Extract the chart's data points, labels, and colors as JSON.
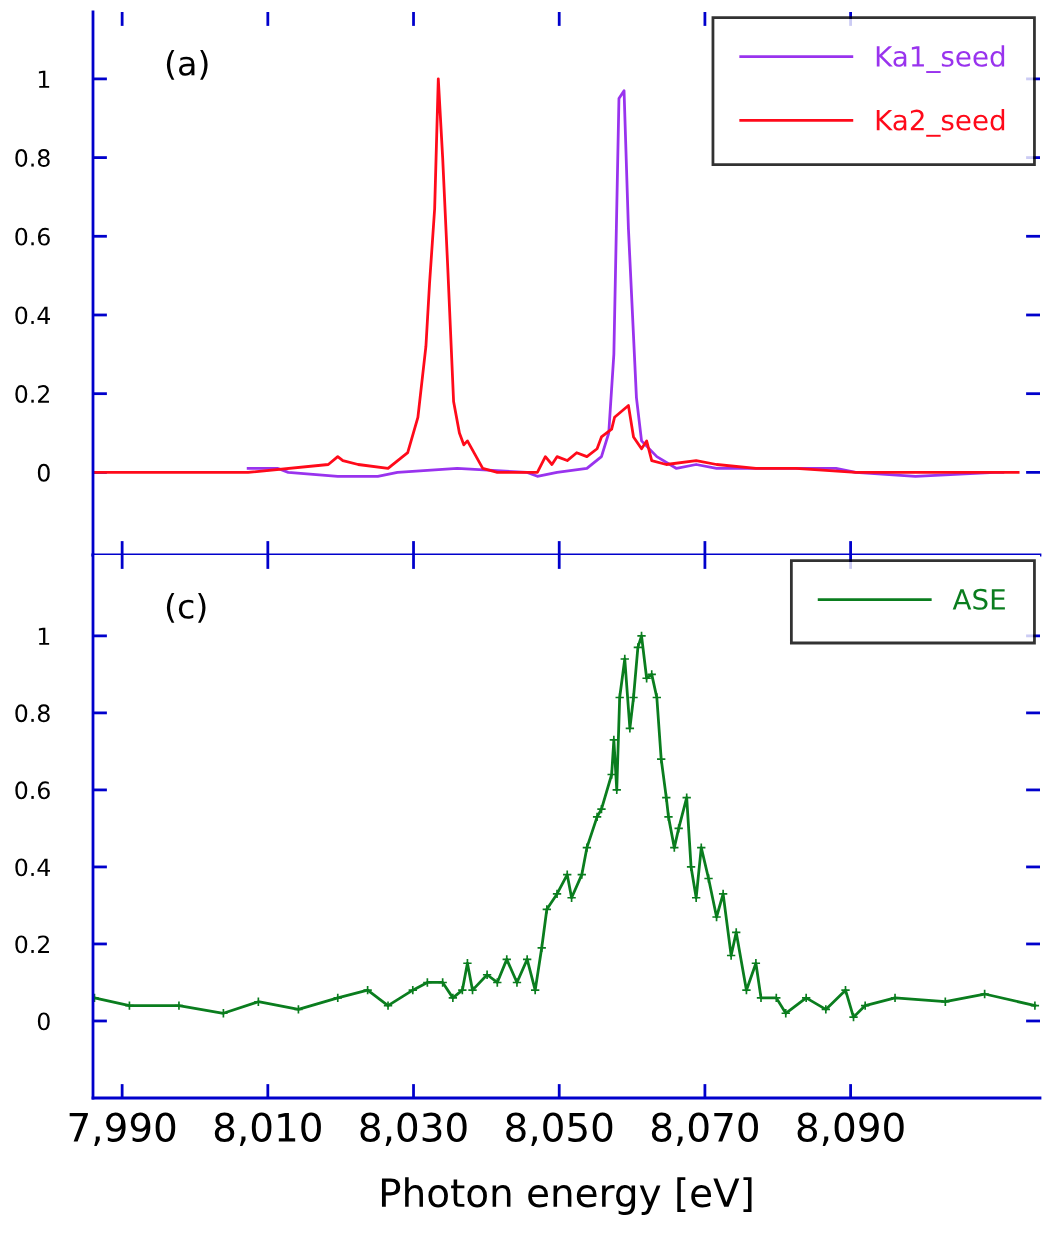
{
  "chart_data": [
    {
      "type": "line",
      "annotations": [
        "(a)"
      ],
      "xlim": [
        7986,
        8116
      ],
      "ylim": [
        -0.21,
        1.17
      ],
      "yticks": [
        0,
        0.2,
        0.4,
        0.6,
        0.8,
        1
      ],
      "xticks": [
        7990,
        8010,
        8030,
        8050,
        8070,
        8090
      ],
      "tick_labels": "y",
      "grid": false,
      "legend": "top right",
      "line_style": "solid",
      "marker": "none",
      "series": [
        {
          "name": "Ka1_seed",
          "color": "#9933ee",
          "x": [
            8007.3,
            8011.4,
            8012.8,
            8019.6,
            8025.1,
            8027.8,
            8036.0,
            8045.6,
            8047.0,
            8049.7,
            8053.8,
            8055.8,
            8056.8,
            8057.5,
            8058.2,
            8058.9,
            8059.5,
            8060.6,
            8061.3,
            8063.4,
            8066.1,
            8068.8,
            8071.6,
            8077.0,
            8082.5,
            8088.0,
            8090.7,
            8098.9,
            8109.8,
            8110.9
          ],
          "values": [
            0.01,
            0.01,
            0.0,
            -0.01,
            -0.01,
            0.0,
            0.01,
            0.0,
            -0.01,
            0.0,
            0.01,
            0.04,
            0.1,
            0.3,
            0.95,
            0.97,
            0.62,
            0.19,
            0.08,
            0.04,
            0.01,
            0.02,
            0.01,
            0.01,
            0.01,
            0.01,
            0.0,
            -0.01,
            0.0,
            0.0
          ]
        },
        {
          "name": "Ka2_seed",
          "color": "#ff0a1a",
          "x": [
            7986.2,
            8007.3,
            8018.3,
            8019.6,
            8020.3,
            8022.4,
            8026.5,
            8029.2,
            8030.6,
            8031.7,
            8032.2,
            8032.9,
            8033.4,
            8034.0,
            8034.7,
            8035.5,
            8036.3,
            8036.9,
            8037.4,
            8039.5,
            8041.5,
            8047.0,
            8048.1,
            8049.0,
            8049.7,
            8051.1,
            8052.4,
            8053.8,
            8055.2,
            8055.8,
            8057.2,
            8057.6,
            8059.5,
            8060.2,
            8061.3,
            8062.0,
            8062.7,
            8064.7,
            8068.8,
            8071.6,
            8077.0,
            8082.5,
            8090.7,
            8113.0
          ],
          "values": [
            0.0,
            0.0,
            0.02,
            0.04,
            0.03,
            0.02,
            0.01,
            0.05,
            0.14,
            0.32,
            0.48,
            0.67,
            1.0,
            0.8,
            0.52,
            0.18,
            0.1,
            0.07,
            0.08,
            0.01,
            0.0,
            0.0,
            0.04,
            0.02,
            0.04,
            0.03,
            0.05,
            0.04,
            0.06,
            0.09,
            0.11,
            0.14,
            0.17,
            0.09,
            0.06,
            0.08,
            0.03,
            0.02,
            0.03,
            0.02,
            0.01,
            0.01,
            0.0,
            0.0
          ]
        }
      ]
    },
    {
      "type": "line",
      "annotations": [
        "(c)"
      ],
      "xlabel": "Photon energy [eV]",
      "xlim": [
        7986,
        8116
      ],
      "ylim": [
        -0.2,
        1.21
      ],
      "yticks": [
        0,
        0.2,
        0.4,
        0.6,
        0.8,
        1
      ],
      "xticks": [
        {
          "value": 7990,
          "label": "7,990"
        },
        {
          "value": 8010,
          "label": "8,010"
        },
        {
          "value": 8030,
          "label": "8,030"
        },
        {
          "value": 8050,
          "label": "8,050"
        },
        {
          "value": 8070,
          "label": "8,070"
        },
        {
          "value": 8090,
          "label": "8,090"
        }
      ],
      "grid": false,
      "legend": "top right",
      "line_style": "solid",
      "marker": "cross",
      "series": [
        {
          "name": "ASE",
          "color": "#0a7d1e",
          "x": [
            7986.2,
            7991.0,
            7997.8,
            8003.9,
            8008.7,
            8014.2,
            8019.6,
            8023.7,
            8026.5,
            8029.9,
            8031.9,
            8034.0,
            8035.4,
            8036.7,
            8037.4,
            8038.1,
            8040.1,
            8041.5,
            8042.8,
            8044.2,
            8045.6,
            8046.7,
            8047.6,
            8048.3,
            8049.7,
            8051.1,
            8051.7,
            8053.1,
            8053.8,
            8055.2,
            8055.8,
            8057.2,
            8057.5,
            8057.9,
            8058.3,
            8059.0,
            8059.7,
            8060.2,
            8060.8,
            8061.3,
            8062.0,
            8062.7,
            8063.4,
            8064.0,
            8064.7,
            8065.0,
            8065.8,
            8066.4,
            8067.5,
            8068.1,
            8068.8,
            8069.5,
            8070.5,
            8071.6,
            8072.5,
            8073.6,
            8074.3,
            8075.7,
            8077.0,
            8077.7,
            8079.8,
            8081.1,
            8083.9,
            8086.6,
            8089.3,
            8090.4,
            8092.0,
            8096.1,
            8103.0,
            8108.4,
            8115.3
          ],
          "values": [
            0.06,
            0.04,
            0.04,
            0.02,
            0.05,
            0.03,
            0.06,
            0.08,
            0.04,
            0.08,
            0.1,
            0.1,
            0.06,
            0.08,
            0.15,
            0.08,
            0.12,
            0.1,
            0.16,
            0.1,
            0.16,
            0.08,
            0.19,
            0.29,
            0.33,
            0.38,
            0.32,
            0.38,
            0.45,
            0.53,
            0.55,
            0.64,
            0.73,
            0.6,
            0.84,
            0.94,
            0.76,
            0.84,
            0.97,
            1.0,
            0.89,
            0.9,
            0.84,
            0.68,
            0.58,
            0.53,
            0.45,
            0.5,
            0.58,
            0.4,
            0.32,
            0.45,
            0.37,
            0.27,
            0.33,
            0.17,
            0.23,
            0.08,
            0.15,
            0.06,
            0.06,
            0.02,
            0.06,
            0.03,
            0.08,
            0.01,
            0.04,
            0.06,
            0.05,
            0.07,
            0.04
          ]
        }
      ]
    }
  ]
}
